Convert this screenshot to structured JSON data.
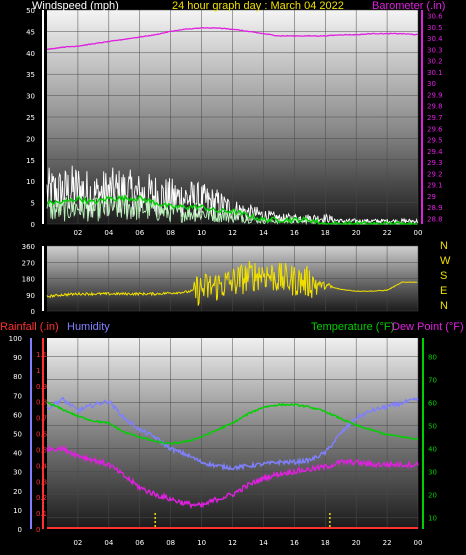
{
  "header": {
    "wind_label": "Windspeed (mph)",
    "title": "24 hour graph day : March 04 2022",
    "baro_label": "Barometer (.in)"
  },
  "panel3_header": {
    "rain_label": "Rainfall (.in)",
    "humidity_label": "Humidity",
    "temp_label": "Temperature (°F)",
    "dew_label": "Dew Point (°F)"
  },
  "colors": {
    "wind_white": "#ffffff",
    "wind_green": "#00d000",
    "wind_light": "#b8f0b8",
    "barometer": "#e020e0",
    "direction": "#f0e000",
    "rainfall": "#ff3030",
    "humidity": "#8080ff",
    "temperature": "#00d000",
    "dewpoint": "#e020e0",
    "rain_tick": "#f0e000"
  },
  "compass_labels": [
    "N",
    "W",
    "S",
    "E",
    "N"
  ],
  "chart_data": [
    {
      "type": "line",
      "name": "wind_barometer",
      "x_ticks": [
        "02",
        "04",
        "06",
        "08",
        "10",
        "12",
        "14",
        "16",
        "18",
        "20",
        "22",
        "00"
      ],
      "xlim": [
        0,
        24
      ],
      "y_left": {
        "ylim": [
          0,
          50
        ],
        "ticks": [
          0,
          5,
          10,
          15,
          20,
          25,
          30,
          35,
          40,
          45,
          50
        ]
      },
      "y_right": {
        "ylim": [
          28.75,
          30.65
        ],
        "ticks": [
          "28.8",
          "28.9",
          "29",
          "29.1",
          "29.2",
          "29.3",
          "29.4",
          "29.5",
          "29.6",
          "29.7",
          "29.8",
          "29.9",
          "30",
          "30.1",
          "30.2",
          "30.3",
          "30.4",
          "30.5",
          "30.6"
        ]
      },
      "series": [
        {
          "key": "wind_gust",
          "axis": "left",
          "x": [
            0,
            1,
            2,
            3,
            4,
            5,
            6,
            7,
            8,
            9,
            10,
            11,
            12,
            13,
            14,
            15,
            16,
            17,
            18,
            19,
            20,
            21,
            22,
            23,
            24
          ],
          "y": [
            11,
            11,
            12,
            10,
            11,
            11,
            10,
            10,
            9,
            9,
            8,
            7,
            5,
            4,
            3,
            2,
            2,
            2,
            2,
            1,
            1,
            1,
            1,
            1,
            1
          ]
        },
        {
          "key": "wind_avg",
          "axis": "left",
          "x": [
            0,
            1,
            2,
            3,
            4,
            5,
            6,
            7,
            8,
            9,
            10,
            11,
            12,
            13,
            14,
            15,
            16,
            17,
            18,
            19,
            20,
            21,
            22,
            23,
            24
          ],
          "y": [
            5,
            5,
            6,
            5,
            6,
            6,
            6,
            5,
            4,
            4,
            4,
            3,
            3,
            2,
            1,
            1,
            1,
            1,
            0,
            0,
            0,
            0,
            0,
            0,
            0
          ]
        },
        {
          "key": "barometer",
          "axis": "right",
          "x": [
            0,
            1,
            2,
            3,
            4,
            5,
            6,
            7,
            8,
            9,
            10,
            11,
            12,
            13,
            14,
            15,
            16,
            17,
            18,
            19,
            20,
            21,
            22,
            23,
            24
          ],
          "y": [
            30.3,
            30.32,
            30.33,
            30.35,
            30.37,
            30.39,
            30.41,
            30.43,
            30.46,
            30.48,
            30.49,
            30.49,
            30.48,
            30.46,
            30.44,
            30.42,
            30.42,
            30.42,
            30.42,
            30.43,
            30.43,
            30.44,
            30.44,
            30.44,
            30.43
          ]
        }
      ]
    },
    {
      "type": "line",
      "name": "wind_direction",
      "xlim": [
        0,
        24
      ],
      "ylim": [
        0,
        360
      ],
      "y_ticks": [
        0,
        90,
        180,
        270,
        360
      ],
      "series": [
        {
          "key": "direction",
          "x": [
            0,
            1,
            2,
            3,
            4,
            5,
            6,
            7,
            8,
            9,
            10,
            11,
            12,
            13,
            14,
            15,
            16,
            17,
            18,
            19,
            20,
            21,
            22,
            23,
            24
          ],
          "y": [
            80,
            90,
            95,
            95,
            95,
            95,
            95,
            95,
            100,
            105,
            120,
            140,
            160,
            190,
            210,
            180,
            170,
            160,
            140,
            120,
            110,
            110,
            115,
            160,
            160
          ]
        }
      ]
    },
    {
      "type": "line",
      "name": "rain_humidity_temperature",
      "xlim": [
        0,
        24
      ],
      "y_left_outer": {
        "key": "humidity",
        "ylim": [
          0,
          100
        ],
        "ticks": [
          0,
          10,
          20,
          30,
          40,
          50,
          60,
          70,
          80,
          90,
          100
        ]
      },
      "y_left_inner": {
        "key": "rainfall",
        "ylim": [
          0,
          1.2
        ],
        "ticks": [
          "0",
          "0.1",
          "0.2",
          "0.3",
          "0.4",
          "0.5",
          "0.6",
          "0.7",
          "0.8",
          "0.9",
          "1",
          "1.1"
        ]
      },
      "y_right": {
        "key": "temperature",
        "ylim": [
          5,
          88
        ],
        "ticks": [
          10,
          20,
          30,
          40,
          50,
          60,
          70,
          80
        ]
      },
      "rain_tick_hours": [
        7.0,
        18.3
      ],
      "series": [
        {
          "key": "humidity",
          "axis": "left_outer",
          "x": [
            0,
            1,
            2,
            3,
            4,
            5,
            6,
            7,
            8,
            9,
            10,
            11,
            12,
            13,
            14,
            15,
            16,
            17,
            18,
            19,
            20,
            21,
            22,
            23,
            24
          ],
          "y": [
            63,
            68,
            62,
            65,
            67,
            58,
            52,
            48,
            42,
            39,
            35,
            33,
            32,
            33,
            34,
            35,
            35,
            36,
            40,
            50,
            58,
            62,
            64,
            66,
            68
          ]
        },
        {
          "key": "temperature",
          "axis": "right",
          "x": [
            0,
            1,
            2,
            3,
            4,
            5,
            6,
            7,
            8,
            9,
            10,
            11,
            12,
            13,
            14,
            15,
            16,
            17,
            18,
            19,
            20,
            21,
            22,
            23,
            24
          ],
          "y": [
            60,
            57,
            54,
            52,
            51,
            47,
            45,
            43,
            42,
            43,
            45,
            48,
            51,
            55,
            58,
            59,
            59,
            58,
            56,
            53,
            50,
            48,
            46,
            45,
            44
          ]
        },
        {
          "key": "dewpoint",
          "axis": "right",
          "x": [
            0,
            1,
            2,
            3,
            4,
            5,
            6,
            7,
            8,
            9,
            10,
            11,
            12,
            13,
            14,
            15,
            16,
            17,
            18,
            19,
            20,
            21,
            22,
            23,
            24
          ],
          "y": [
            40,
            40,
            37,
            35,
            33,
            28,
            23,
            20,
            18,
            16,
            15,
            18,
            20,
            24,
            27,
            29,
            30,
            31,
            32,
            34,
            34,
            33,
            33,
            33,
            33
          ]
        },
        {
          "key": "rainfall",
          "axis": "left_inner",
          "x": [
            0,
            24
          ],
          "y": [
            0,
            0
          ]
        }
      ]
    }
  ]
}
